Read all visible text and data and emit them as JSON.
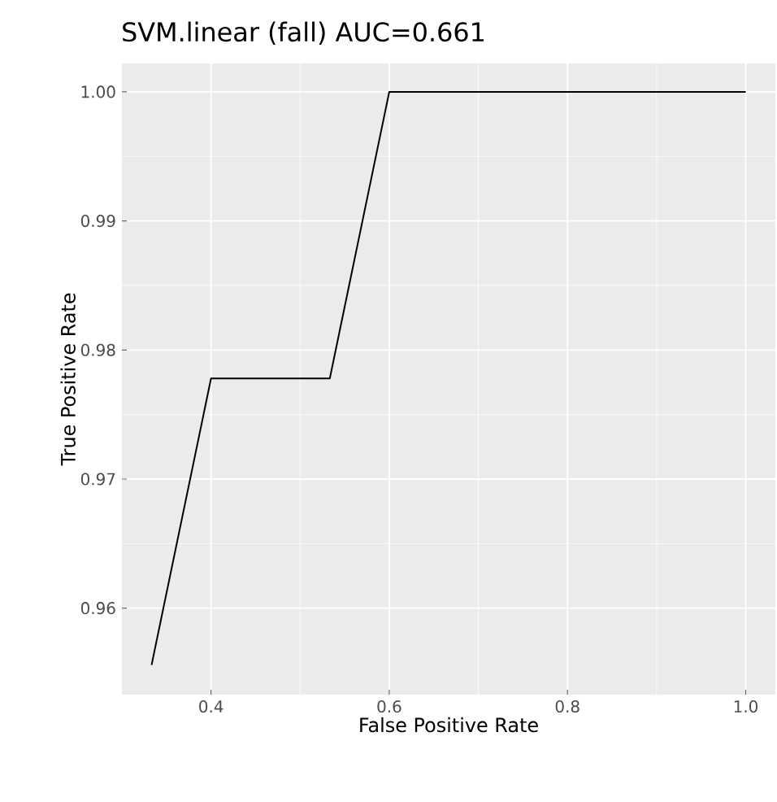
{
  "chart_data": {
    "type": "line",
    "title": "SVM.linear (fall) AUC=0.661",
    "xlabel": "False Positive Rate",
    "ylabel": "True Positive Rate",
    "x": [
      0.3333,
      0.4,
      0.5333,
      0.6,
      1.0
    ],
    "series": [
      {
        "color": "#000000",
        "values": [
          0.9556,
          0.9778,
          0.9778,
          1.0,
          1.0
        ]
      }
    ],
    "xlim": [
      0.3,
      1.0333
    ],
    "ylim": [
      0.9533,
      1.0022
    ],
    "xticks": [
      {
        "value": 0.4,
        "label": "0.4"
      },
      {
        "value": 0.6,
        "label": "0.6"
      },
      {
        "value": 0.8,
        "label": "0.8"
      },
      {
        "value": 1.0,
        "label": "1.0"
      }
    ],
    "yticks": [
      {
        "value": 0.96,
        "label": "0.96"
      },
      {
        "value": 0.97,
        "label": "0.97"
      },
      {
        "value": 0.98,
        "label": "0.98"
      },
      {
        "value": 0.99,
        "label": "0.99"
      },
      {
        "value": 1.0,
        "label": "1.00"
      }
    ],
    "grid": true,
    "marker": "none",
    "line_style": "solid"
  }
}
